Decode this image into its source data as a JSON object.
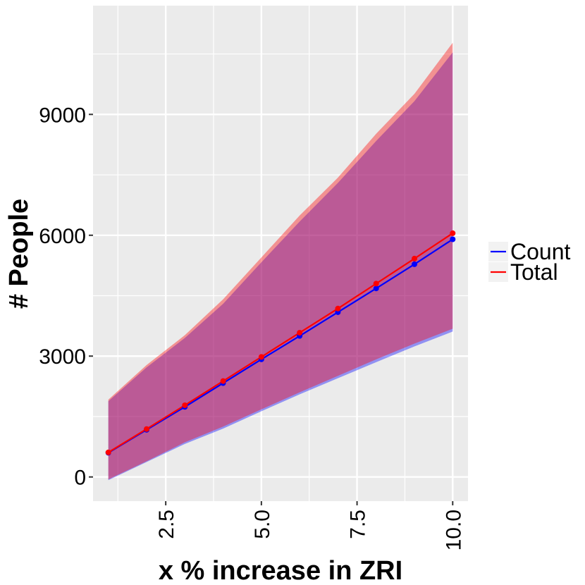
{
  "chart_data": {
    "type": "line",
    "xlabel": "x % increase in ZRI",
    "ylabel": "# People",
    "xlim": [
      0.6,
      10.4
    ],
    "ylim": [
      -600,
      11700
    ],
    "x_ticks": [
      2.5,
      5.0,
      7.5,
      10.0
    ],
    "x_tick_labels": [
      "2.5",
      "5.0",
      "7.5",
      "10.0"
    ],
    "y_ticks": [
      0,
      3000,
      6000,
      9000
    ],
    "y_tick_labels": [
      "0",
      "3000",
      "6000",
      "9000"
    ],
    "grid": true,
    "legend_position": "right",
    "x": [
      1,
      2,
      3,
      4,
      5,
      6,
      7,
      8,
      9,
      10
    ],
    "series": [
      {
        "name": "Count",
        "color": "#0000ff",
        "values": [
          600,
          1170,
          1740,
          2330,
          2920,
          3500,
          4090,
          4680,
          5280,
          5900
        ],
        "lower": [
          -80,
          370,
          820,
          1200,
          1630,
          2050,
          2450,
          2850,
          3240,
          3610
        ],
        "upper": [
          1880,
          2720,
          3450,
          4300,
          5330,
          6340,
          7300,
          8340,
          9330,
          10540
        ]
      },
      {
        "name": "Total",
        "color": "#ff0000",
        "values": [
          610,
          1190,
          1780,
          2380,
          2980,
          3580,
          4180,
          4800,
          5420,
          6050
        ],
        "lower": [
          -60,
          390,
          860,
          1250,
          1680,
          2100,
          2510,
          2920,
          3310,
          3680
        ],
        "upper": [
          1920,
          2780,
          3520,
          4410,
          5450,
          6490,
          7430,
          8520,
          9510,
          10780
        ]
      }
    ]
  }
}
